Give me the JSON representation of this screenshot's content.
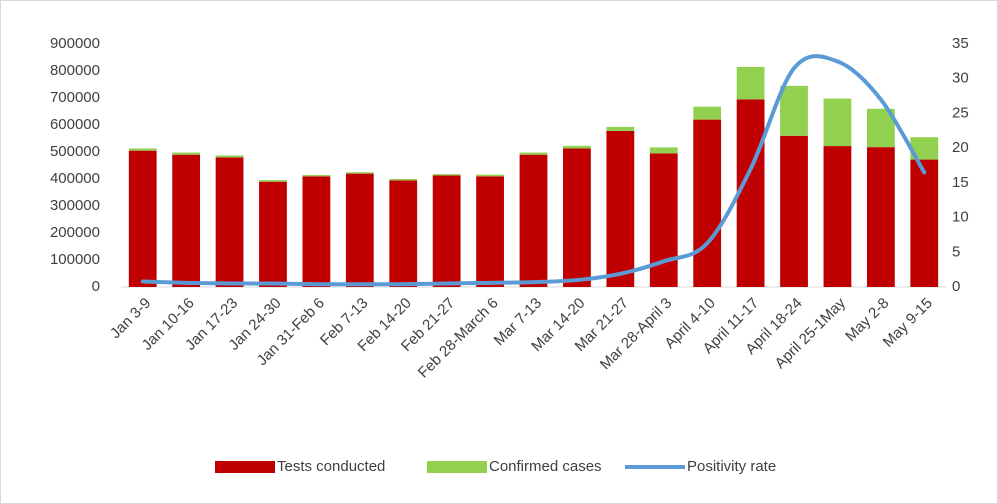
{
  "chart_data": {
    "type": "bar",
    "stacked": true,
    "categories": [
      "Jan 3-9",
      "Jan 10-16",
      "Jan 17-23",
      "Jan 24-30",
      "Jan 31-Feb 6",
      "Feb 7-13",
      "Feb 14-20",
      "Feb 21-27",
      "Feb 28-March 6",
      "Mar 7-13",
      "Mar 14-20",
      "Mar 21-27",
      "Mar 28-April 3",
      "April 4-10",
      "April 11-17",
      "April 18-24",
      "April 25-1May",
      "May 2-8",
      "May 9-15"
    ],
    "series": [
      {
        "name": "Tests conducted",
        "color": "#c00000",
        "values": [
          505000,
          490000,
          480000,
          390000,
          410000,
          420000,
          395000,
          413000,
          410000,
          490000,
          513000,
          578000,
          495000,
          620000,
          695000,
          560000,
          522000,
          518000,
          472000
        ]
      },
      {
        "name": "Confirmed cases",
        "color": "#92d050",
        "values": [
          8000,
          8000,
          7000,
          6000,
          5000,
          5000,
          5000,
          5000,
          6000,
          8000,
          10000,
          15000,
          22000,
          48000,
          120000,
          185000,
          176000,
          142000,
          83000
        ]
      },
      {
        "name": "Positivity rate",
        "color": "#5b9bd5",
        "type": "line",
        "axis": "y2",
        "values": [
          0.8,
          0.6,
          0.5,
          0.5,
          0.4,
          0.4,
          0.4,
          0.5,
          0.6,
          0.7,
          1,
          1.9,
          3.7,
          6.3,
          17,
          31.5,
          32.5,
          27,
          16.5
        ]
      }
    ],
    "ylim": [
      0,
      900000
    ],
    "yticks": [
      0,
      100000,
      200000,
      300000,
      400000,
      500000,
      600000,
      700000,
      800000,
      900000
    ],
    "y2lim": [
      0,
      35
    ],
    "y2ticks": [
      0,
      5,
      10,
      15,
      20,
      25,
      30,
      35
    ],
    "grid": false,
    "legend": "bottom"
  }
}
